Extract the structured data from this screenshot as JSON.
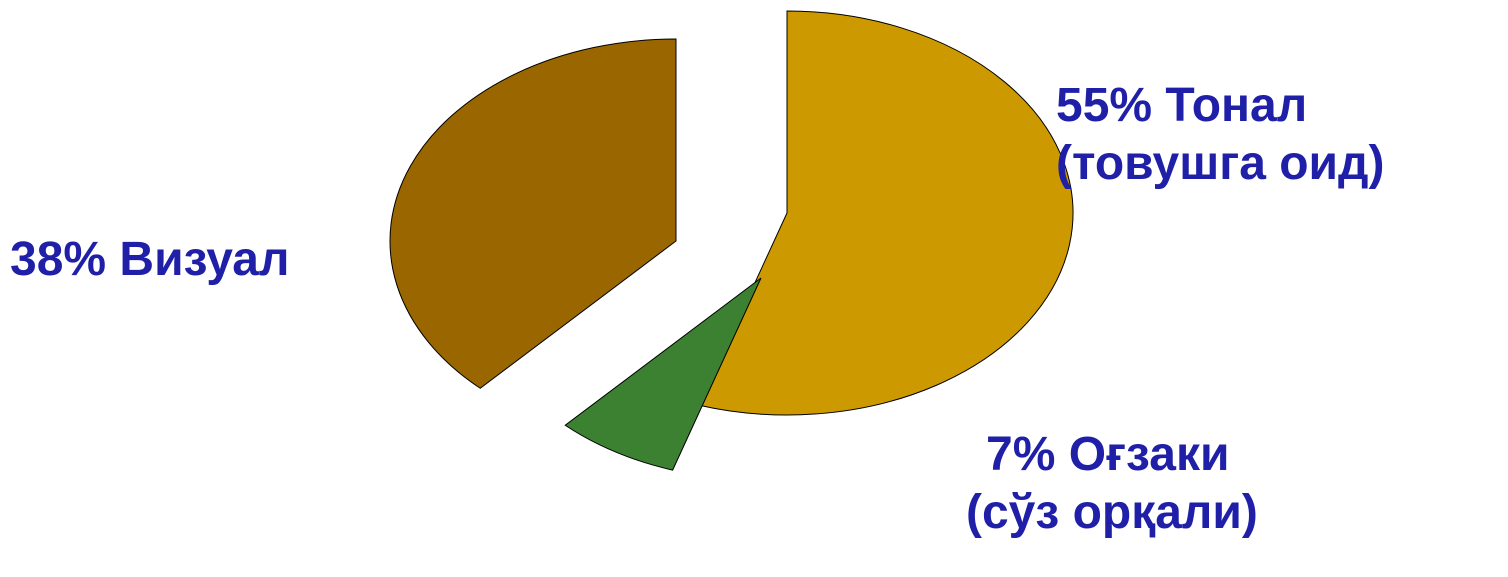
{
  "chart_data": {
    "type": "pie",
    "exploded": true,
    "slices": [
      {
        "value": 55,
        "label_line1": "55% Тонал",
        "label_line2": "(товушга оид)",
        "color": "#CC9900"
      },
      {
        "value": 7,
        "label_line1": "7% Оғзаки",
        "label_line2": "(сўз орқали)",
        "color": "#3C8032"
      },
      {
        "value": 38,
        "label_line1": "38% Визуал",
        "label_line2": "",
        "color": "#996600"
      }
    ],
    "label_color": "#1F1FA8",
    "edge_color": "#000000",
    "start_angle_deg": 0,
    "direction": "clockwise"
  }
}
